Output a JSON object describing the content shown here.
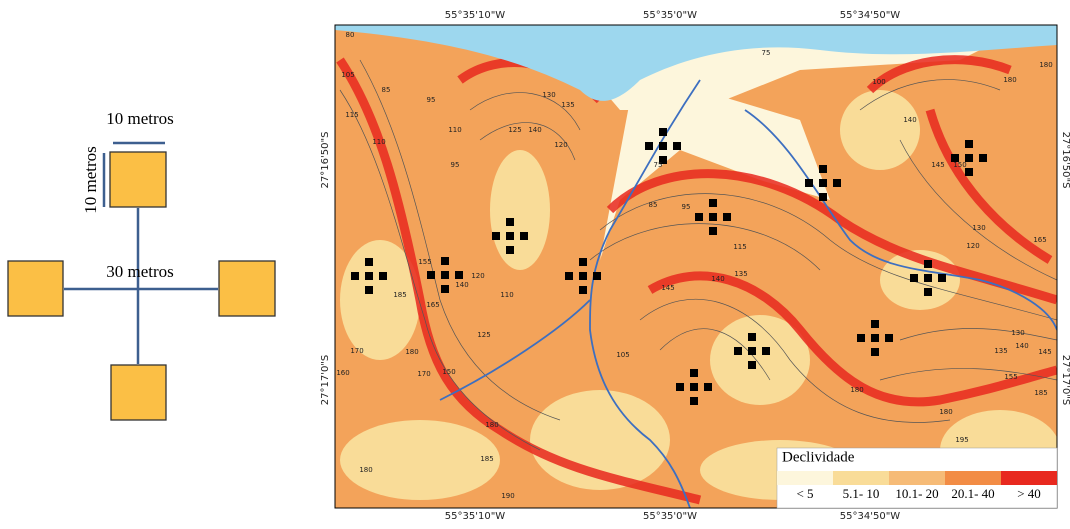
{
  "diagram": {
    "top_label": "10 metros",
    "side_label": "10 metros",
    "center_label": "30 metros"
  },
  "map": {
    "top_coords": [
      "55°35'10\"W",
      "55°35'0\"W",
      "55°34'50\"W"
    ],
    "bottom_coords": [
      "55°35'10\"W",
      "55°35'0\"W",
      "55°34'50\"W"
    ],
    "left_coords": [
      "27°16'50\"S",
      "27°17'0\"S"
    ],
    "right_coords": [
      "27°16'50\"S",
      "27°17'0\"S"
    ],
    "contour_labels": [
      "80",
      "105",
      "115",
      "110",
      "85",
      "95",
      "110",
      "130",
      "135",
      "140",
      "125",
      "120",
      "75",
      "75",
      "85",
      "95",
      "115",
      "140",
      "135",
      "145",
      "155",
      "165",
      "105",
      "110",
      "125",
      "170",
      "180",
      "185",
      "160",
      "180",
      "180",
      "185",
      "190",
      "170",
      "150",
      "180",
      "180",
      "195",
      "185",
      "155",
      "135",
      "140",
      "145",
      "130",
      "120",
      "130",
      "165",
      "145",
      "150",
      "140",
      "100",
      "180",
      "180",
      "95",
      "120",
      "140"
    ],
    "legend": {
      "title": "Declividade",
      "classes": [
        {
          "label": "< 5",
          "color": "#fdf6dc"
        },
        {
          "label": "5.1- 10",
          "color": "#f9dc98"
        },
        {
          "label": "10.1- 20",
          "color": "#f6bb77"
        },
        {
          "label": "20.1- 40",
          "color": "#f28c45"
        },
        {
          "label": "> 40",
          "color": "#e8291f"
        }
      ]
    }
  }
}
